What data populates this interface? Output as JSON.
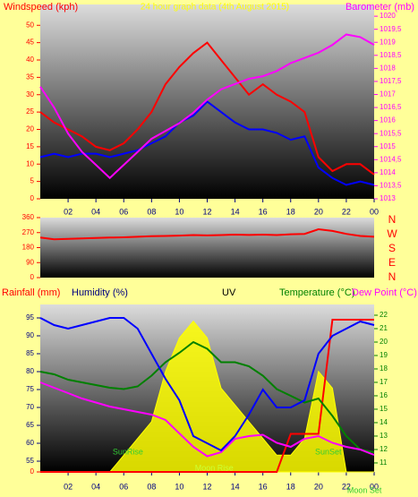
{
  "chart_data": [
    {
      "type": "line",
      "title": "24 hour graph data (4th August 2015)",
      "y_label": "Windspeed (kph)",
      "y2_label": "Barometer (mb)",
      "x": [
        0,
        1,
        2,
        3,
        4,
        5,
        6,
        7,
        8,
        9,
        10,
        11,
        12,
        13,
        14,
        15,
        16,
        17,
        18,
        19,
        20,
        21,
        22,
        23,
        24
      ],
      "xlim": [
        0,
        24
      ],
      "xticks": [
        {
          "value": 2,
          "label": "02"
        },
        {
          "value": 4,
          "label": "04"
        },
        {
          "value": 6,
          "label": "06"
        },
        {
          "value": 8,
          "label": "08"
        },
        10,
        12,
        14,
        16,
        18,
        20,
        22,
        {
          "value": 24,
          "label": "00"
        }
      ],
      "ylim": [
        0,
        56
      ],
      "yticks": [
        0,
        5,
        10,
        15,
        20,
        25,
        30,
        35,
        40,
        45,
        50
      ],
      "y2lim": [
        1013,
        1020.45
      ],
      "y2ticks": [
        1013,
        {
          "value": 1013.5,
          "label": "1013,5"
        },
        1014,
        {
          "value": 1014.5,
          "label": "1014,5"
        },
        1015,
        {
          "value": 1015.5,
          "label": "1015,5"
        },
        1016,
        {
          "value": 1016.5,
          "label": "1016,5"
        },
        1017,
        {
          "value": 1017.5,
          "label": "1017,5"
        },
        1018,
        {
          "value": 1018.5,
          "label": "1018,5"
        },
        1019,
        {
          "value": 1019.5,
          "label": "1019,5"
        },
        1020
      ],
      "series": [
        {
          "color": "#ff0000",
          "values": [
            25,
            22,
            20,
            18,
            15,
            14,
            16,
            20,
            25,
            33,
            38,
            42,
            45,
            40,
            35,
            30,
            33,
            30,
            28,
            25,
            12,
            8,
            10,
            10,
            7
          ]
        },
        {
          "color": "#0000ff",
          "values": [
            12,
            13,
            12,
            13,
            13,
            12,
            13,
            14,
            16,
            18,
            22,
            24,
            28,
            25,
            22,
            20,
            20,
            19,
            17,
            18,
            9,
            6,
            4,
            5,
            4
          ]
        },
        {
          "color": "#ff00ff",
          "axis": "y2",
          "values": [
            1017.3,
            1016.5,
            1015.5,
            1014.8,
            1014.3,
            1013.8,
            1014.3,
            1014.8,
            1015.3,
            1015.6,
            1015.9,
            1016.3,
            1016.8,
            1017.2,
            1017.4,
            1017.6,
            1017.7,
            1017.9,
            1018.2,
            1018.4,
            1018.6,
            1018.9,
            1019.3,
            1019.2,
            1018.9
          ]
        }
      ]
    },
    {
      "type": "line",
      "x": [
        0,
        1,
        2,
        3,
        4,
        5,
        6,
        7,
        8,
        9,
        10,
        11,
        12,
        13,
        14,
        15,
        16,
        17,
        18,
        19,
        20,
        21,
        22,
        23,
        24
      ],
      "xlim": [
        0,
        24
      ],
      "ylim": [
        0,
        360
      ],
      "yticks": [
        0,
        90,
        180,
        270,
        360
      ],
      "compass": [
        "N",
        "W",
        "S",
        "E",
        "N"
      ],
      "series": [
        {
          "color": "#ff0000",
          "values": [
            240,
            230,
            232,
            235,
            238,
            240,
            242,
            245,
            248,
            250,
            252,
            255,
            253,
            255,
            258,
            256,
            258,
            255,
            260,
            262,
            290,
            280,
            262,
            250,
            245
          ]
        }
      ]
    },
    {
      "type": "line",
      "rain_label": "Rainfall (mm)",
      "y_label": "Humidity (%)",
      "uv_label": "UV",
      "y2_label": "Temperature (°C)",
      "dew_label": "Dew Point (°C)",
      "x": [
        0,
        1,
        2,
        3,
        4,
        5,
        6,
        7,
        8,
        9,
        10,
        11,
        12,
        13,
        14,
        15,
        16,
        17,
        18,
        19,
        20,
        21,
        22,
        23,
        24
      ],
      "xlim": [
        0,
        24
      ],
      "xticks": [
        {
          "value": 2,
          "label": "02"
        },
        {
          "value": 4,
          "label": "04"
        },
        {
          "value": 6,
          "label": "06"
        },
        {
          "value": 8,
          "label": "08"
        },
        10,
        12,
        14,
        16,
        18,
        20,
        22,
        {
          "value": 24,
          "label": "00"
        }
      ],
      "ylim": [
        52,
        98.75
      ],
      "yticks": [
        55,
        60,
        65,
        70,
        75,
        80,
        85,
        90,
        95
      ],
      "y2lim": [
        10.33,
        22.8
      ],
      "y2ticks": [
        11,
        12,
        13,
        14,
        15,
        16,
        17,
        18,
        19,
        20,
        21,
        22
      ],
      "y3lim": [
        0,
        1.1
      ],
      "y3ticks": [
        0
      ],
      "y4lim": [
        0,
        10
      ],
      "series": [
        {
          "color": "#ffff00",
          "axis": "y4",
          "values": [
            0,
            0,
            0,
            0,
            0,
            0,
            1,
            2,
            3,
            6,
            8,
            9,
            8,
            5,
            4,
            3,
            2,
            1,
            1,
            2,
            6,
            5,
            0,
            0,
            0
          ]
        },
        {
          "color": "#ff0000",
          "axis": "y3",
          "values": [
            0,
            0,
            0,
            0,
            0,
            0,
            0,
            0,
            0,
            0,
            0,
            0,
            0,
            0,
            0,
            0,
            0,
            0,
            0.25,
            0.25,
            0.25,
            1,
            1,
            1,
            1
          ]
        },
        {
          "color": "#008000",
          "axis": "y2",
          "values": [
            17.8,
            17.6,
            17.2,
            17.0,
            16.8,
            16.6,
            16.5,
            16.7,
            17.5,
            18.5,
            19.2,
            20,
            19.5,
            18.5,
            18.5,
            18.2,
            17.5,
            16.5,
            16,
            15.5,
            15.8,
            14.5,
            13,
            12,
            11.8
          ]
        },
        {
          "color": "#ff00ff",
          "axis": "y2",
          "values": [
            17,
            16.6,
            16.2,
            15.8,
            15.5,
            15.2,
            15,
            14.8,
            14.6,
            14.2,
            13.2,
            12.2,
            11.5,
            11.8,
            12.8,
            13.0,
            13.1,
            12.5,
            12.2,
            12.8,
            13,
            12.5,
            12.2,
            12,
            11.6
          ]
        },
        {
          "color": "#0000ff",
          "values": [
            95,
            93,
            92,
            93,
            94,
            95,
            95,
            92,
            85,
            78,
            72,
            62,
            60,
            58,
            62,
            68,
            75,
            70,
            70,
            72,
            85,
            90,
            92,
            94,
            93
          ]
        }
      ],
      "annotations": [
        {
          "text": "SunRise",
          "x": 6.3
        },
        {
          "text": "Moon Rise",
          "x": 12.5
        },
        {
          "text": "SunSet",
          "x": 20.7
        },
        {
          "text": "Moon Set",
          "x": 23.3
        }
      ]
    }
  ]
}
